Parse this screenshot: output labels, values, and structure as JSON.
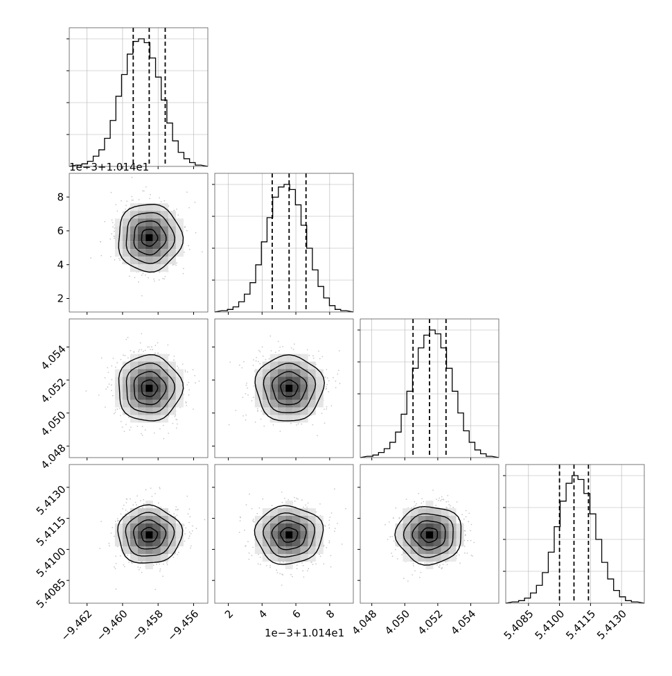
{
  "chart_data": {
    "type": "corner",
    "description_free": true,
    "parameters": [
      {
        "range": [
          -9.463,
          -9.4552
        ],
        "ticks": [
          -9.462,
          -9.46,
          -9.458,
          -9.456
        ],
        "tick_labels": [
          "−9.462",
          "−9.460",
          "−9.458",
          "−9.456"
        ],
        "quantiles": [
          -9.4594,
          -9.4585,
          -9.4576
        ],
        "mean": -9.4585,
        "sd": 0.0009,
        "hist_max": 1.0,
        "hist_ticks": [
          0.25,
          0.5,
          0.75,
          1.0
        ],
        "offset_label": ""
      },
      {
        "range": [
          1.2,
          9.4
        ],
        "ticks": [
          2,
          4,
          6,
          8
        ],
        "tick_labels": [
          "2",
          "4",
          "6",
          "8"
        ],
        "quantiles": [
          4.6,
          5.6,
          6.6
        ],
        "mean": 5.6,
        "sd": 1.0,
        "hist_max": 1.0,
        "hist_ticks": [
          0.25,
          0.5,
          0.75,
          1.0
        ],
        "offset_label": "1e−3+1.014e1"
      },
      {
        "range": [
          4.0473,
          4.0557
        ],
        "ticks": [
          4.048,
          4.05,
          4.052,
          4.054
        ],
        "tick_labels": [
          "4.048",
          "4.050",
          "4.052",
          "4.054"
        ],
        "quantiles": [
          4.0505,
          4.0515,
          4.0525
        ],
        "mean": 4.0515,
        "sd": 0.001,
        "hist_max": 1.0,
        "hist_ticks": [
          0.25,
          0.5,
          0.75,
          1.0
        ],
        "offset_label": ""
      },
      {
        "range": [
          5.4074,
          5.4141
        ],
        "ticks": [
          5.4085,
          5.41,
          5.4115,
          5.413
        ],
        "tick_labels": [
          "5.4085",
          "5.4100",
          "5.4115",
          "5.4130"
        ],
        "quantiles": [
          5.41,
          5.4107,
          5.4114
        ],
        "mean": 5.4107,
        "sd": 0.0007,
        "hist_max": 1.0,
        "hist_ticks": [
          0.25,
          0.5,
          0.75,
          1.0
        ],
        "offset_label": ""
      }
    ],
    "histograms": [
      [
        0.01,
        0.02,
        0.04,
        0.08,
        0.13,
        0.22,
        0.36,
        0.55,
        0.72,
        0.88,
        0.98,
        1.0,
        0.97,
        0.85,
        0.7,
        0.52,
        0.34,
        0.2,
        0.11,
        0.06,
        0.03,
        0.01
      ],
      [
        0.01,
        0.02,
        0.04,
        0.08,
        0.14,
        0.23,
        0.37,
        0.55,
        0.74,
        0.9,
        0.98,
        1.0,
        0.96,
        0.84,
        0.68,
        0.5,
        0.33,
        0.2,
        0.11,
        0.05,
        0.02,
        0.01
      ],
      [
        0.01,
        0.02,
        0.04,
        0.07,
        0.12,
        0.2,
        0.34,
        0.52,
        0.7,
        0.86,
        0.96,
        1.0,
        0.97,
        0.86,
        0.7,
        0.52,
        0.35,
        0.21,
        0.12,
        0.06,
        0.03,
        0.01
      ],
      [
        0.01,
        0.02,
        0.04,
        0.08,
        0.14,
        0.24,
        0.4,
        0.6,
        0.8,
        0.94,
        1.0,
        0.97,
        0.86,
        0.7,
        0.5,
        0.32,
        0.19,
        0.1,
        0.05,
        0.02,
        0.01
      ]
    ],
    "contour_levels_sigma": [
      0.5,
      1.0,
      1.5,
      2.0
    ],
    "grid": true,
    "colors": {
      "line": "#000000",
      "points": "#c8c8c8",
      "grid": "#b0b0b0",
      "background": "#ffffff"
    }
  }
}
